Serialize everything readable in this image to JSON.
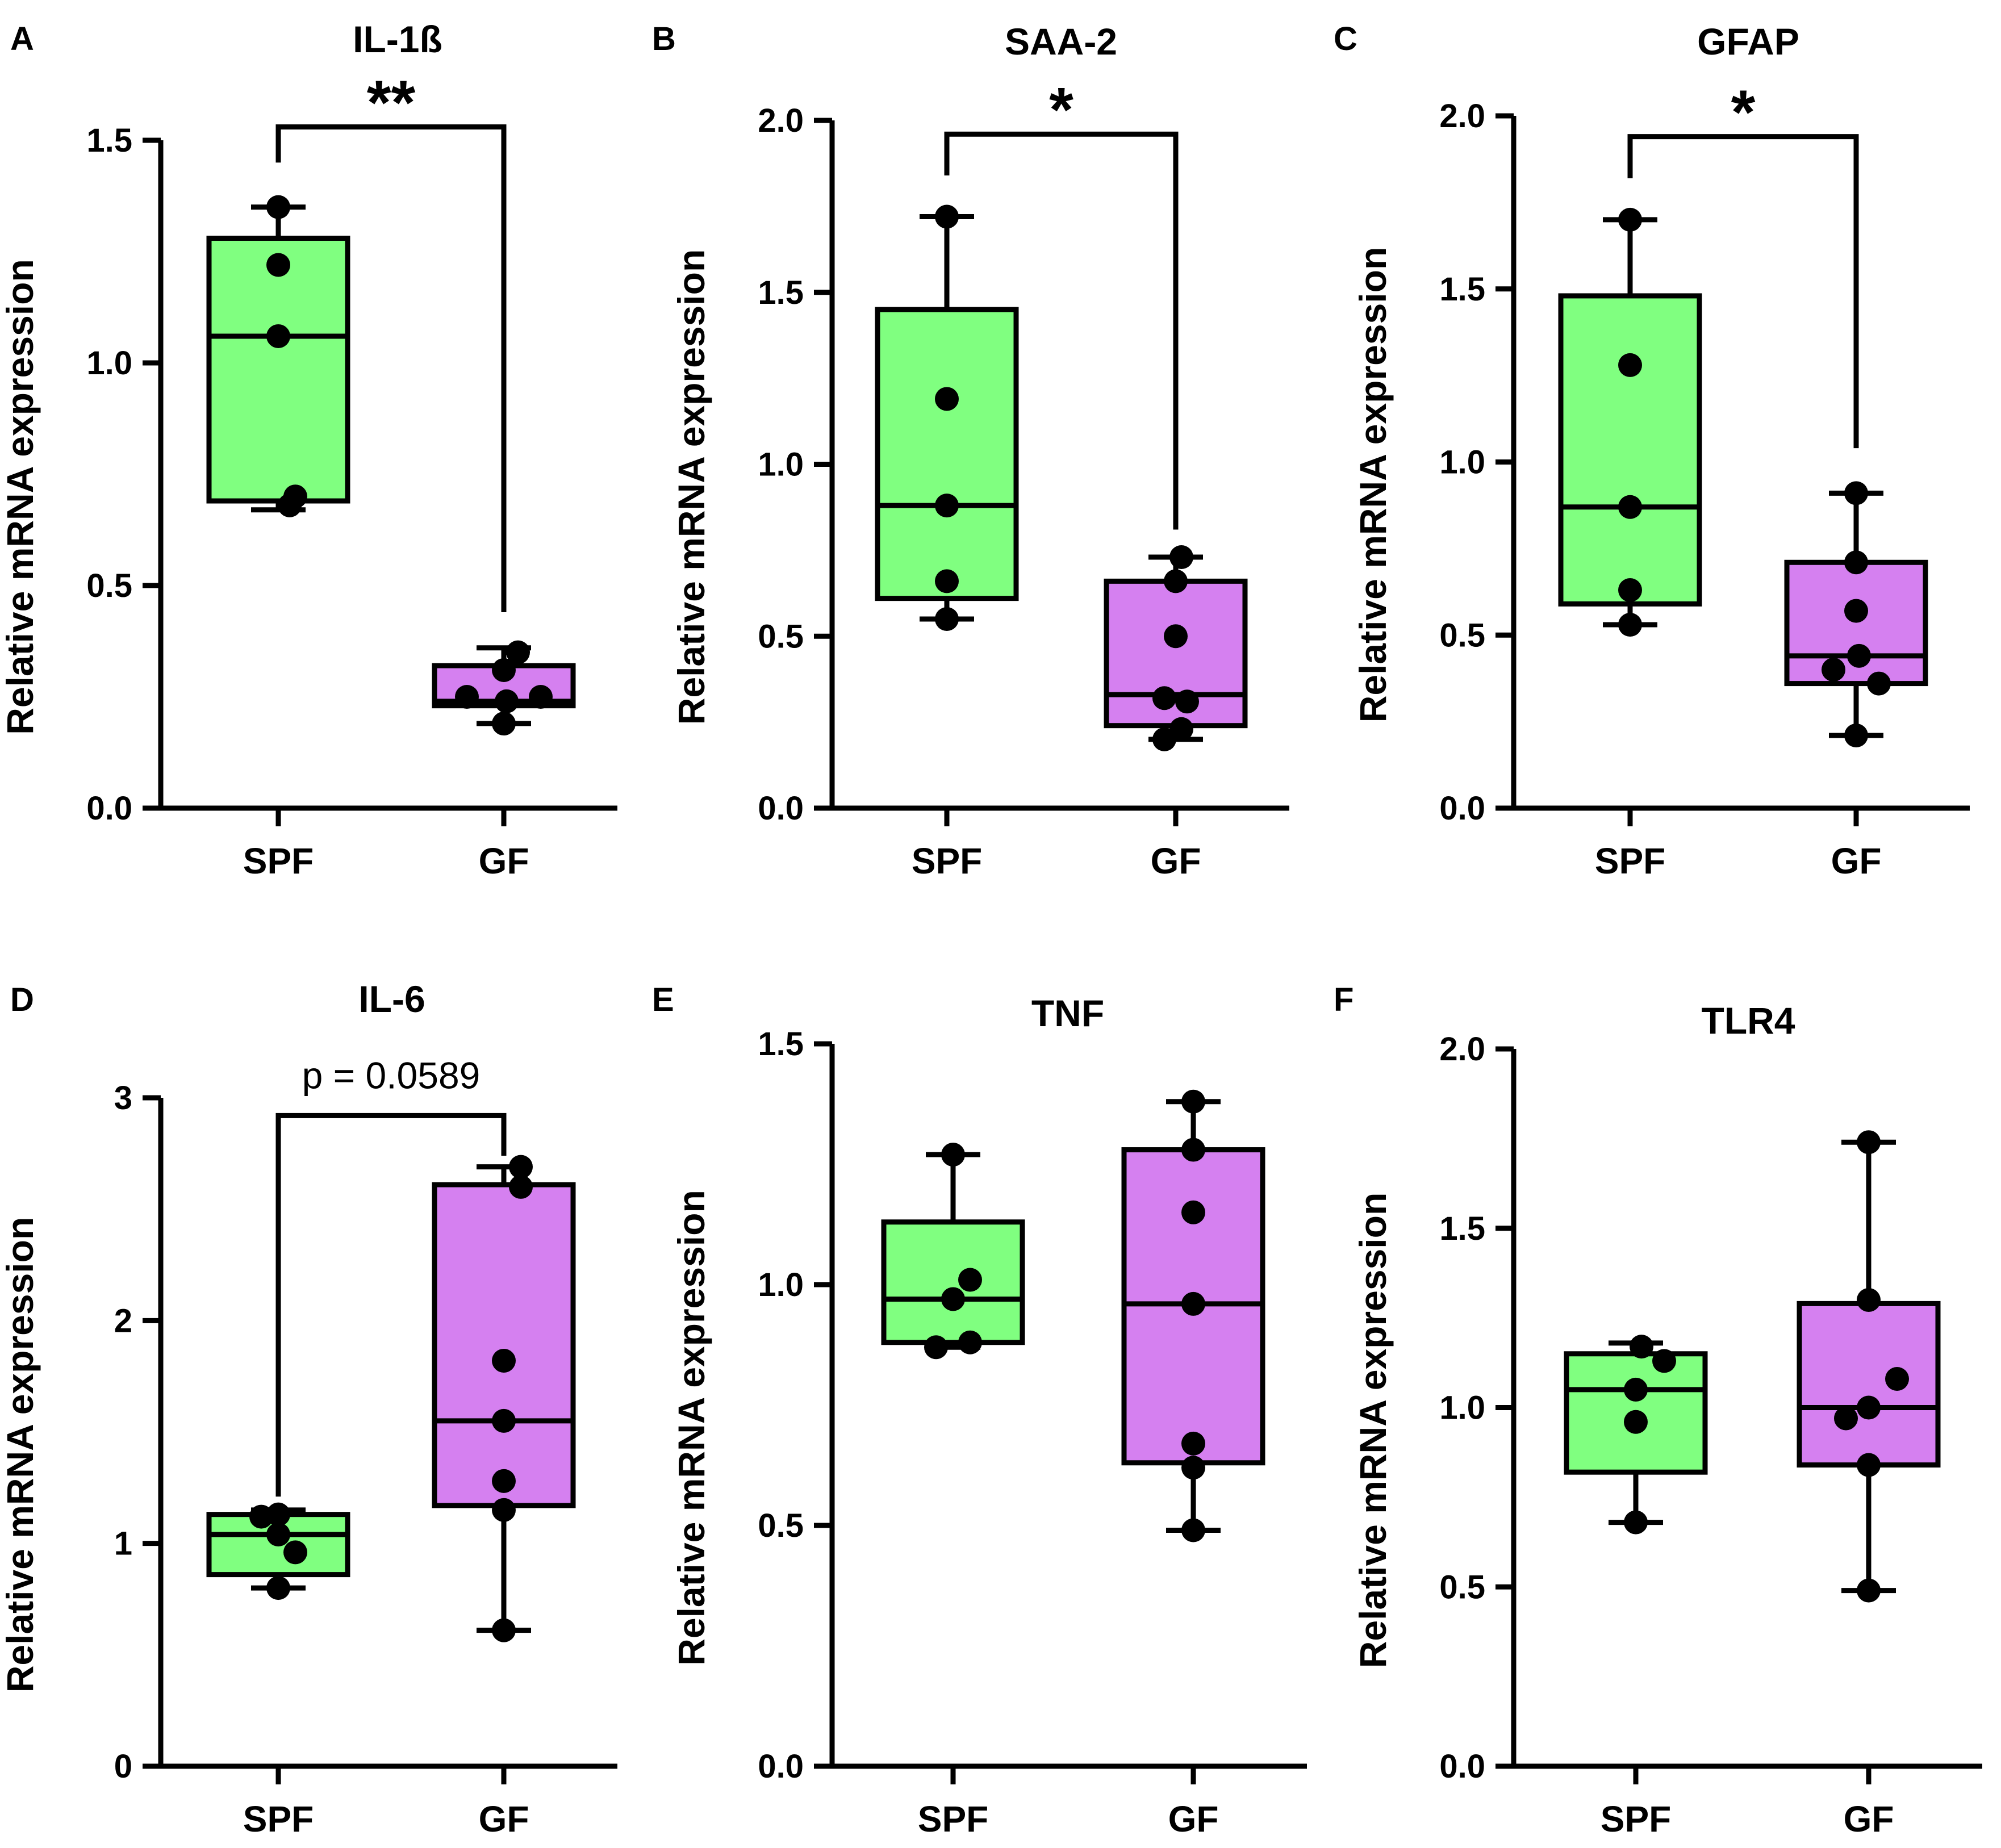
{
  "colors": {
    "SPF": "#80FF80",
    "GF": "#D580F0",
    "ink": "#000000"
  },
  "chart_data": [
    {
      "type": "box",
      "panel": "A",
      "title": "IL-1ß",
      "ylabel": "Relative mRNA expression",
      "ylim": [
        0,
        1.5
      ],
      "yticks": [
        "0.0",
        "0.5",
        "1.0",
        "1.5"
      ],
      "categories": [
        "SPF",
        "GF"
      ],
      "series": [
        {
          "name": "SPF",
          "whisker_low": 0.67,
          "q1": 0.69,
          "median": 1.06,
          "q3": 1.28,
          "whisker_high": 1.35,
          "points": [
            1.35,
            1.22,
            1.06,
            0.7,
            0.68
          ]
        },
        {
          "name": "GF",
          "whisker_low": 0.19,
          "q1": 0.23,
          "median": 0.24,
          "q3": 0.32,
          "whisker_high": 0.36,
          "points": [
            0.35,
            0.31,
            0.25,
            0.24,
            0.25,
            0.19
          ]
        }
      ],
      "significance": {
        "label": "**",
        "kind": "star",
        "bar_y": 1.53,
        "left_end": 1.45,
        "right_end": 0.44
      }
    },
    {
      "type": "box",
      "panel": "B",
      "title": "SAA-2",
      "ylabel": "Relative mRNA expression",
      "ylim": [
        0,
        2.0
      ],
      "yticks": [
        "0.0",
        "0.5",
        "1.0",
        "1.5",
        "2.0"
      ],
      "categories": [
        "SPF",
        "GF"
      ],
      "series": [
        {
          "name": "SPF",
          "whisker_low": 0.55,
          "q1": 0.61,
          "median": 0.88,
          "q3": 1.45,
          "whisker_high": 1.72,
          "points": [
            1.72,
            1.19,
            0.88,
            0.66,
            0.55
          ]
        },
        {
          "name": "GF",
          "whisker_low": 0.2,
          "q1": 0.24,
          "median": 0.33,
          "q3": 0.66,
          "whisker_high": 0.73,
          "points": [
            0.73,
            0.66,
            0.5,
            0.32,
            0.31,
            0.23,
            0.2
          ]
        }
      ],
      "significance": {
        "label": "*",
        "kind": "star",
        "bar_y": 1.96,
        "left_end": 1.84,
        "right_end": 0.81
      }
    },
    {
      "type": "box",
      "panel": "C",
      "title": "GFAP",
      "ylabel": "Relative mRNA expression",
      "ylim": [
        0,
        2.0
      ],
      "yticks": [
        "0.0",
        "0.5",
        "1.0",
        "1.5",
        "2.0"
      ],
      "categories": [
        "SPF",
        "GF"
      ],
      "series": [
        {
          "name": "SPF",
          "whisker_low": 0.53,
          "q1": 0.59,
          "median": 0.87,
          "q3": 1.48,
          "whisker_high": 1.7,
          "points": [
            1.7,
            1.28,
            0.87,
            0.63,
            0.53
          ]
        },
        {
          "name": "GF",
          "whisker_low": 0.21,
          "q1": 0.36,
          "median": 0.44,
          "q3": 0.71,
          "whisker_high": 0.91,
          "points": [
            0.91,
            0.71,
            0.57,
            0.4,
            0.44,
            0.36,
            0.21
          ]
        }
      ],
      "significance": {
        "label": "*",
        "kind": "star",
        "bar_y": 1.94,
        "left_end": 1.82,
        "right_end": 1.04
      }
    },
    {
      "type": "box",
      "panel": "D",
      "title": "IL-6",
      "ylabel": "Relative mRNA expression",
      "ylim": [
        0,
        3
      ],
      "yticks": [
        "0",
        "1",
        "2",
        "3"
      ],
      "categories": [
        "SPF",
        "GF"
      ],
      "series": [
        {
          "name": "SPF",
          "whisker_low": 0.8,
          "q1": 0.86,
          "median": 1.04,
          "q3": 1.13,
          "whisker_high": 1.15,
          "points": [
            1.13,
            1.12,
            1.04,
            0.96,
            0.8
          ]
        },
        {
          "name": "GF",
          "whisker_low": 0.61,
          "q1": 1.17,
          "median": 1.55,
          "q3": 2.61,
          "whisker_high": 2.69,
          "points": [
            2.69,
            2.6,
            1.82,
            1.55,
            1.28,
            1.15,
            0.61
          ]
        }
      ],
      "significance": {
        "label": "p = 0.0589",
        "kind": "p",
        "bar_y": 2.92,
        "left_end": 1.21,
        "right_end": 2.74
      }
    },
    {
      "type": "box",
      "panel": "E",
      "title": "TNF",
      "ylabel": "Relative mRNA expression",
      "ylim": [
        0,
        1.5
      ],
      "yticks": [
        "0.0",
        "0.5",
        "1.0",
        "1.5"
      ],
      "categories": [
        "SPF",
        "GF"
      ],
      "series": [
        {
          "name": "SPF",
          "whisker_low": 0.87,
          "q1": 0.88,
          "median": 0.97,
          "q3": 1.13,
          "whisker_high": 1.27,
          "points": [
            1.27,
            1.01,
            0.97,
            0.87,
            0.88
          ]
        },
        {
          "name": "GF",
          "whisker_low": 0.49,
          "q1": 0.63,
          "median": 0.96,
          "q3": 1.28,
          "whisker_high": 1.38,
          "points": [
            1.38,
            1.28,
            1.15,
            0.96,
            0.67,
            0.62,
            0.49
          ]
        }
      ]
    },
    {
      "type": "box",
      "panel": "F",
      "title": "TLR4",
      "ylabel": "Relative mRNA expression",
      "ylim": [
        0,
        2.0
      ],
      "yticks": [
        "0.0",
        "0.5",
        "1.0",
        "1.5",
        "2.0"
      ],
      "categories": [
        "SPF",
        "GF"
      ],
      "series": [
        {
          "name": "SPF",
          "whisker_low": 0.68,
          "q1": 0.82,
          "median": 1.05,
          "q3": 1.15,
          "whisker_high": 1.18,
          "points": [
            1.17,
            1.13,
            1.05,
            0.96,
            0.68
          ]
        },
        {
          "name": "GF",
          "whisker_low": 0.49,
          "q1": 0.84,
          "median": 1.0,
          "q3": 1.29,
          "whisker_high": 1.74,
          "points": [
            1.74,
            1.3,
            1.08,
            0.97,
            1.0,
            0.84,
            0.49
          ]
        }
      ]
    }
  ]
}
